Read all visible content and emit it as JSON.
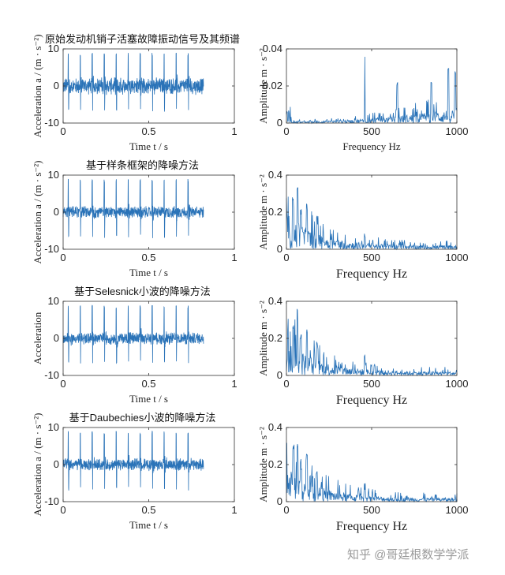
{
  "watermark": "知乎 @哥廷根数学学派",
  "colors": {
    "line": "#2a73b8",
    "axis": "#333333"
  },
  "chart_data": [
    {
      "type": "line",
      "title": "原始发动机销子活塞故障振动信号及其频谱",
      "xlabel": "Time t / s",
      "ylabel": "Acceleration   a / (m · s⁻²)",
      "xlim": [
        0,
        1
      ],
      "ylim": [
        -10,
        10
      ],
      "xticks": [
        "0",
        "0.5",
        "1"
      ],
      "yticks": [
        "10",
        "0",
        "-10"
      ],
      "series": [
        {
          "name": "vibration signal",
          "x_range": [
            0,
            0.82
          ],
          "impulse_times": [
            0.03,
            0.1,
            0.17,
            0.24,
            0.31,
            0.38,
            0.45,
            0.52,
            0.59,
            0.66,
            0.73
          ],
          "impulse_peak": 9,
          "impulse_trough": -7,
          "noise_amplitude": 2.5
        }
      ]
    },
    {
      "type": "line",
      "title": "",
      "xlabel": "Frequency  Hz",
      "ylabel": "Amplitude   m · s⁻²",
      "xlim": [
        0,
        1000
      ],
      "ylim": [
        0,
        0.04
      ],
      "xticks": [
        "0",
        "500",
        "1000"
      ],
      "yticks": [
        "0.04",
        "0.02",
        "0"
      ],
      "series": [
        {
          "name": "spectrum",
          "shape": "rising",
          "peaks": [
            [
              460,
              0.038
            ],
            [
              650,
              0.022
            ],
            [
              850,
              0.024
            ],
            [
              950,
              0.031
            ],
            [
              990,
              0.028
            ]
          ]
        }
      ]
    },
    {
      "type": "line",
      "title": "基于样条框架的降噪方法",
      "xlabel": "Time t / s",
      "ylabel": "Acceleration   a / (m · s⁻²)",
      "xlim": [
        0,
        1
      ],
      "ylim": [
        -10,
        10
      ],
      "xticks": [
        "0",
        "0.5",
        "1"
      ],
      "yticks": [
        "10",
        "0",
        "-10"
      ],
      "series": [
        {
          "name": "denoised signal",
          "x_range": [
            0,
            0.82
          ],
          "impulse_times": [
            0.03,
            0.1,
            0.17,
            0.24,
            0.31,
            0.38,
            0.45,
            0.52,
            0.59,
            0.66,
            0.73
          ],
          "impulse_peak": 9,
          "impulse_trough": -7,
          "noise_amplitude": 1.8
        }
      ]
    },
    {
      "type": "line",
      "title": "",
      "xlabel": "Frequency  Hz",
      "ylabel": "Amplitude   m · s⁻²",
      "xlim": [
        0,
        1000
      ],
      "ylim": [
        0,
        0.4
      ],
      "xticks": [
        "0",
        "500",
        "1000"
      ],
      "yticks": [
        "0.4",
        "0.2",
        "0"
      ],
      "series": [
        {
          "name": "spectrum",
          "shape": "decaying",
          "peaks": [
            [
              40,
              0.28
            ],
            [
              65,
              0.35
            ],
            [
              85,
              0.22
            ],
            [
              120,
              0.26
            ],
            [
              180,
              0.18
            ],
            [
              460,
              0.09
            ]
          ]
        }
      ]
    },
    {
      "type": "line",
      "title": "基于Selesnick小波的降噪方法",
      "xlabel": "Time t / s",
      "ylabel": "Acceleration",
      "xlim": [
        0,
        1
      ],
      "ylim": [
        -10,
        10
      ],
      "xticks": [
        "0",
        "0.5",
        "1"
      ],
      "yticks": [
        "10",
        "0",
        "-10"
      ],
      "series": [
        {
          "name": "denoised signal",
          "x_range": [
            0,
            0.82
          ],
          "impulse_times": [
            0.03,
            0.1,
            0.17,
            0.24,
            0.31,
            0.38,
            0.45,
            0.52,
            0.59,
            0.66,
            0.73
          ],
          "impulse_peak": 9,
          "impulse_trough": -7,
          "noise_amplitude": 1.8
        }
      ]
    },
    {
      "type": "line",
      "title": "",
      "xlabel": "Frequency  Hz",
      "ylabel": "Amplitude   m · s⁻²",
      "xlim": [
        0,
        1000
      ],
      "ylim": [
        0,
        0.4
      ],
      "xticks": [
        "0",
        "500",
        "1000"
      ],
      "yticks": [
        "0.4",
        "0.2",
        "0"
      ],
      "series": [
        {
          "name": "spectrum",
          "shape": "decaying",
          "peaks": [
            [
              40,
              0.28
            ],
            [
              65,
              0.36
            ],
            [
              85,
              0.22
            ],
            [
              120,
              0.25
            ],
            [
              180,
              0.18
            ],
            [
              460,
              0.11
            ]
          ]
        }
      ]
    },
    {
      "type": "line",
      "title": "基于Daubechies小波的降噪方法",
      "xlabel": "Time t / s",
      "ylabel": "Acceleration   a / (m · s⁻²)",
      "xlim": [
        0,
        1
      ],
      "ylim": [
        -10,
        10
      ],
      "xticks": [
        "0",
        "0.5",
        "1"
      ],
      "yticks": [
        "10",
        "0",
        "-10"
      ],
      "series": [
        {
          "name": "denoised signal",
          "x_range": [
            0,
            0.82
          ],
          "impulse_times": [
            0.03,
            0.1,
            0.17,
            0.24,
            0.31,
            0.38,
            0.45,
            0.52,
            0.59,
            0.66,
            0.73
          ],
          "impulse_peak": 9,
          "impulse_trough": -7,
          "noise_amplitude": 1.8
        }
      ]
    },
    {
      "type": "line",
      "title": "",
      "xlabel": "Frequency  Hz",
      "ylabel": "Amplitude   m · s⁻²",
      "xlim": [
        0,
        1000
      ],
      "ylim": [
        0,
        0.4
      ],
      "xticks": [
        "0",
        "500",
        "1000"
      ],
      "yticks": [
        "0.4",
        "0.2",
        "0"
      ],
      "series": [
        {
          "name": "spectrum",
          "shape": "decaying",
          "peaks": [
            [
              40,
              0.3
            ],
            [
              65,
              0.32
            ],
            [
              85,
              0.23
            ],
            [
              120,
              0.26
            ],
            [
              180,
              0.17
            ],
            [
              460,
              0.1
            ]
          ]
        }
      ]
    }
  ]
}
